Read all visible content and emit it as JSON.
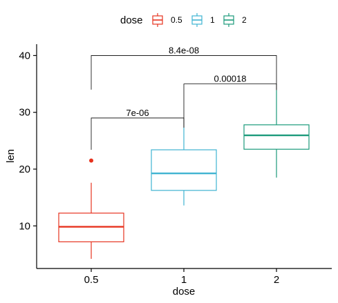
{
  "chart_data": {
    "type": "boxplot",
    "xlabel": "dose",
    "ylabel": "len",
    "categories": [
      "0.5",
      "1",
      "2"
    ],
    "ylim": [
      2.5,
      42
    ],
    "yticks": [
      10,
      20,
      30,
      40
    ],
    "legend": {
      "title": "dose",
      "placement": "top",
      "entries": [
        "0.5",
        "1",
        "2"
      ]
    },
    "colors": [
      "#E7321E",
      "#3EB3D1",
      "#1A9A7A"
    ],
    "boxes": [
      {
        "category": "0.5",
        "min": 4.2,
        "q1": 7.2,
        "median": 9.85,
        "q3": 12.25,
        "max": 17.6,
        "outliers": [
          21.5
        ]
      },
      {
        "category": "1",
        "min": 13.6,
        "q1": 16.25,
        "median": 19.25,
        "q3": 23.4,
        "max": 27.3,
        "outliers": []
      },
      {
        "category": "2",
        "min": 18.5,
        "q1": 23.5,
        "median": 25.95,
        "q3": 27.8,
        "max": 33.9,
        "outliers": []
      }
    ],
    "comparisons": [
      {
        "from": "0.5",
        "to": "1",
        "label": "7e-06",
        "y": 29
      },
      {
        "from": "1",
        "to": "2",
        "label": "0.00018",
        "y": 35
      },
      {
        "from": "0.5",
        "to": "2",
        "label": "8.4e-08",
        "y": 40
      }
    ],
    "grid": false
  }
}
